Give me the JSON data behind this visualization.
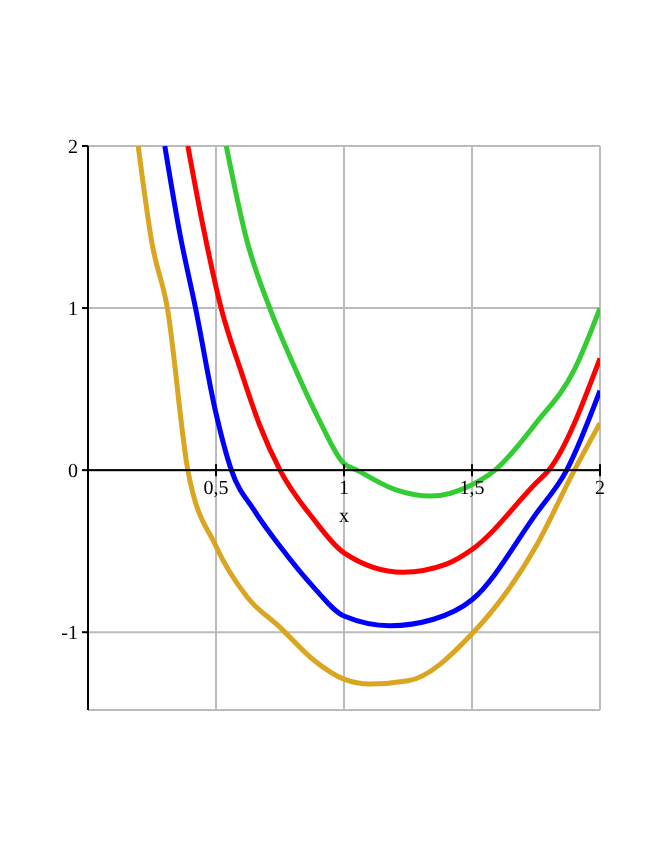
{
  "chart_data": {
    "type": "line",
    "xlabel": "x",
    "xlim": [
      0,
      2
    ],
    "ylim": [
      -1.48,
      2
    ],
    "xticks": [
      {
        "value": 0.5,
        "label": "0,5"
      },
      1,
      {
        "value": 1.5,
        "label": "1,5"
      },
      2
    ],
    "yticks": [
      -1,
      0,
      1,
      2
    ],
    "grid": true,
    "marker": "none",
    "series": [
      {
        "color": "#daa520",
        "x": [
          0.196,
          0.25,
          0.31,
          0.39,
          0.5,
          0.62,
          0.75,
          0.88,
          1,
          1.1,
          1.25,
          1.5,
          1.75,
          1.9,
          2
        ],
        "values": [
          2,
          1.4,
          1,
          0,
          -0.47,
          -0.78,
          -0.97,
          -1.17,
          -1.29,
          -1.32,
          -1.3,
          -1.01,
          -0.47,
          0,
          0.29
        ]
      },
      {
        "color": "#0000ff",
        "x": [
          0.3,
          0.36,
          0.42,
          0.5,
          0.56,
          0.65,
          0.75,
          0.88,
          1,
          1.18,
          1.35,
          1.5,
          1.75,
          1.87,
          2
        ],
        "values": [
          2,
          1.45,
          1,
          0.35,
          0,
          -0.25,
          -0.47,
          -0.72,
          -0.9,
          -0.96,
          -0.92,
          -0.8,
          -0.27,
          0,
          0.49
        ]
      },
      {
        "color": "#ff0000",
        "x": [
          0.39,
          0.45,
          0.52,
          0.6,
          0.67,
          0.75,
          0.88,
          1,
          1.23,
          1.4,
          1.5,
          1.75,
          1.8,
          2
        ],
        "values": [
          2,
          1.5,
          1,
          0.6,
          0.28,
          0,
          -0.3,
          -0.51,
          -0.63,
          -0.58,
          -0.49,
          -0.08,
          0,
          0.69
        ]
      },
      {
        "color": "#33cc33",
        "x": [
          0.54,
          0.62,
          0.71,
          0.8,
          0.9,
          1,
          1.05,
          1.2,
          1.34,
          1.5,
          1.59,
          1.75,
          1.9,
          2
        ],
        "values": [
          2,
          1.42,
          1,
          0.66,
          0.32,
          0.04,
          0,
          -0.12,
          -0.16,
          -0.09,
          0,
          0.29,
          0.62,
          1
        ]
      }
    ]
  }
}
